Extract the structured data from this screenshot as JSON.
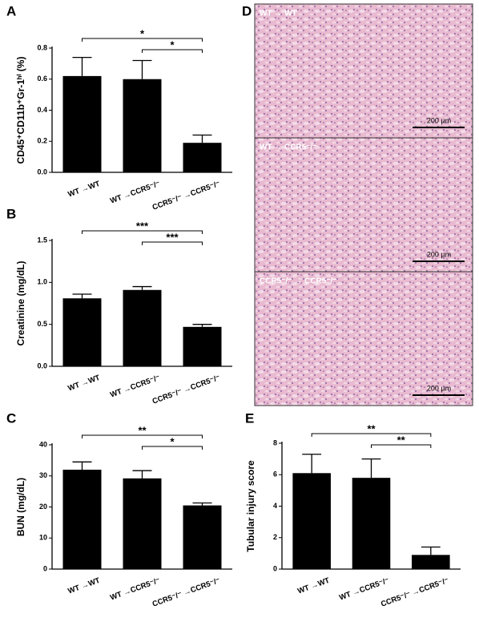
{
  "chart_data": [
    {
      "type": "bar",
      "panel": "A",
      "ylabel": "CD45⁺CD11b⁺Gr-1ʰⁱ (%)",
      "categories": [
        "WT →WT",
        "WT →CCR5⁻/⁻",
        "CCR5⁻/⁻ →CCR5⁻/⁻"
      ],
      "values": [
        0.62,
        0.6,
        0.19
      ],
      "error": [
        0.12,
        0.12,
        0.05
      ],
      "color": "#000000",
      "ylim": [
        0,
        0.8
      ],
      "yticks": [
        {
          "value": 0,
          "label": "0.0"
        },
        0.2,
        0.4,
        0.6,
        0.8
      ],
      "annotations": [
        "*",
        "*"
      ]
    },
    {
      "type": "bar",
      "panel": "B",
      "ylabel": "Creatinine (mg/dL)",
      "categories": [
        "WT →WT",
        "WT →CCR5⁻/⁻",
        "CCR5⁻/⁻ →CCR5⁻/⁻"
      ],
      "values": [
        0.81,
        0.91,
        0.47
      ],
      "error": [
        0.05,
        0.04,
        0.03
      ],
      "color": "#000000",
      "ylim": [
        0,
        1.5
      ],
      "yticks": [
        {
          "value": 0,
          "label": "0.0"
        },
        0.5,
        {
          "value": 1,
          "label": "1.0"
        },
        1.5
      ],
      "annotations": [
        "***",
        "***"
      ]
    },
    {
      "type": "bar",
      "panel": "C",
      "ylabel": "BUN (mg/dL)",
      "categories": [
        "WT →WT",
        "WT →CCR5⁻/⁻",
        "CCR5⁻/⁻ →CCR5⁻/⁻"
      ],
      "values": [
        32,
        29.2,
        20.5
      ],
      "error": [
        2.5,
        2.5,
        0.8
      ],
      "color": "#000000",
      "ylim": [
        0,
        40
      ],
      "yticks": [
        0,
        10,
        20,
        30,
        40
      ],
      "annotations": [
        "**",
        "*"
      ]
    },
    {
      "type": "bar",
      "panel": "E",
      "ylabel": "Tubular injury score",
      "categories": [
        "WT →WT",
        "WT →CCR5⁻/⁻",
        "CCR5⁻/⁻ →CCR5⁻/⁻"
      ],
      "values": [
        6.1,
        5.8,
        0.9
      ],
      "error": [
        1.2,
        1.2,
        0.5
      ],
      "color": "#000000",
      "ylim": [
        0,
        8
      ],
      "yticks": [
        0,
        2,
        4,
        6,
        8
      ],
      "annotations": [
        "**",
        "**"
      ]
    }
  ],
  "panel_d": {
    "panel": "D",
    "images": [
      {
        "label": "WT → WT",
        "scale": "200 µm"
      },
      {
        "label": "WT → CCR5⁻/⁻",
        "scale": "200 µm"
      },
      {
        "label": "CCR5⁻/⁻ → CCR5⁻/⁻",
        "scale": "200 µm"
      }
    ]
  }
}
